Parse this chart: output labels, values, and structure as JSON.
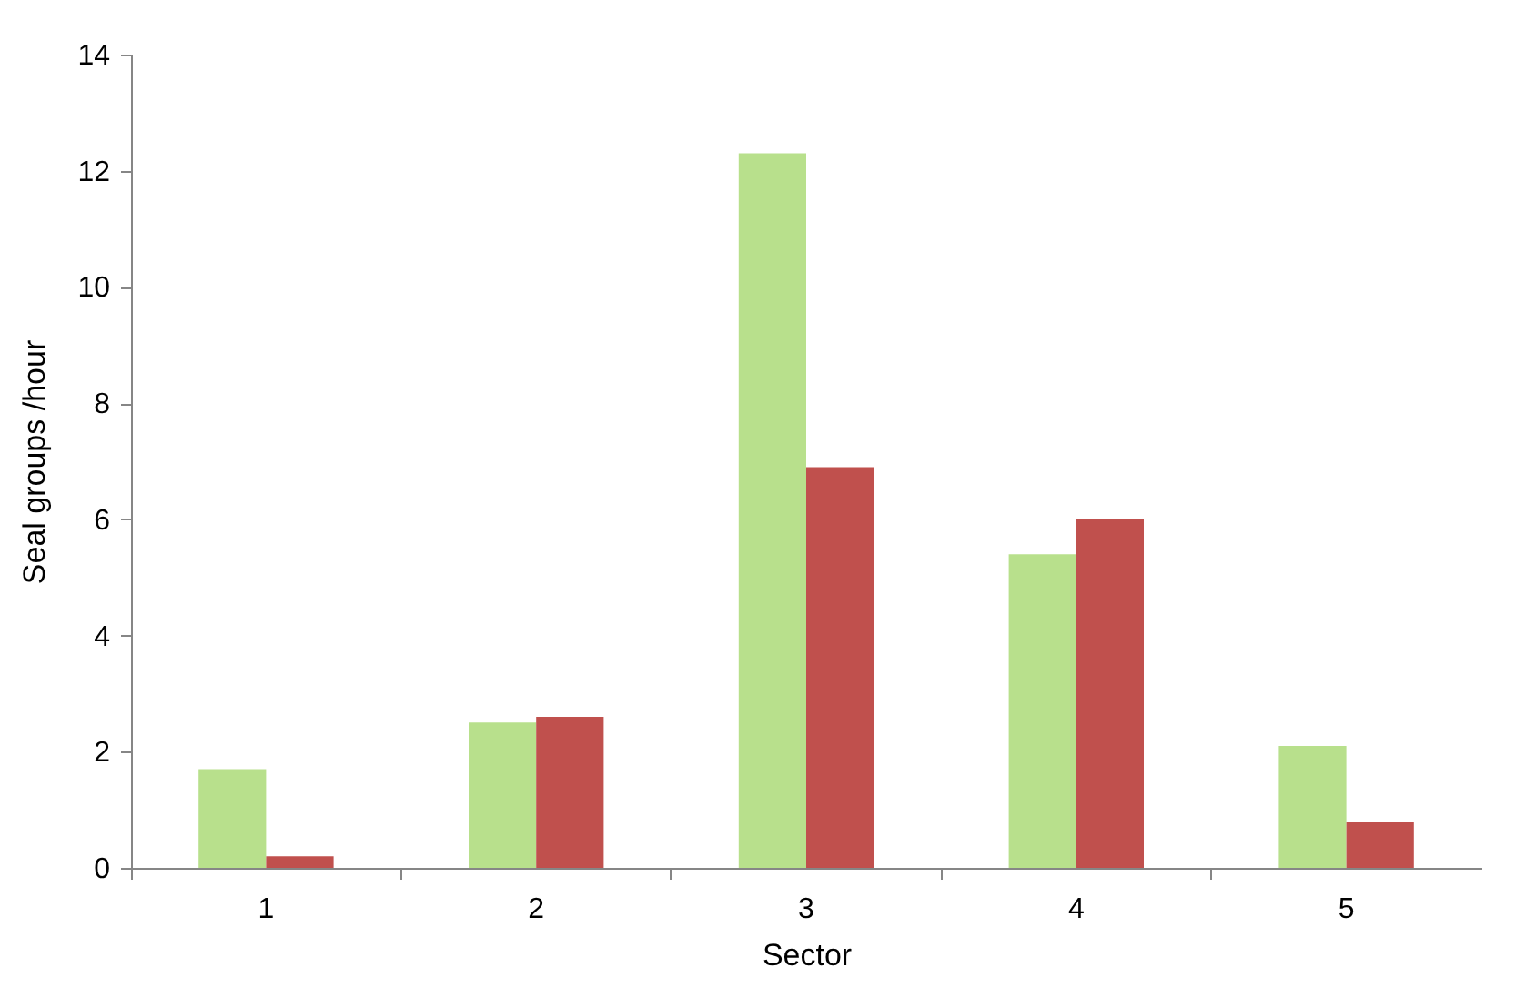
{
  "chart_data": {
    "type": "bar",
    "xlabel": "Sector",
    "ylabel": "Seal groups /hour",
    "categories": [
      "1",
      "2",
      "3",
      "4",
      "5"
    ],
    "series": [
      {
        "color": "#b8e08c",
        "values": [
          1.7,
          2.5,
          12.3,
          5.4,
          2.1
        ]
      },
      {
        "color": "#c0504d",
        "values": [
          0.2,
          2.6,
          6.9,
          6.0,
          0.8
        ]
      }
    ],
    "ylim": [
      0,
      14
    ],
    "yticks": [
      0,
      2,
      4,
      6,
      8,
      10,
      12,
      14
    ],
    "grid": false,
    "legend": false
  }
}
